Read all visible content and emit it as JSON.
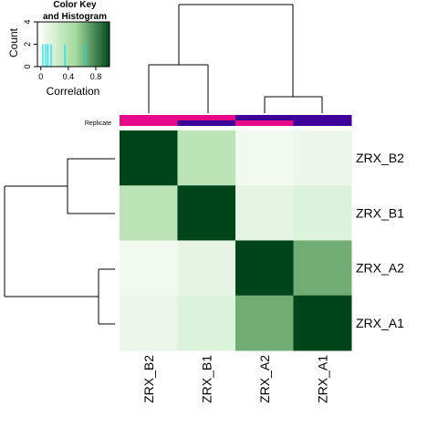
{
  "chart_data": {
    "type": "heatmap",
    "rows": [
      "ZRX_B2",
      "ZRX_B1",
      "ZRX_A2",
      "ZRX_A1"
    ],
    "columns": [
      "ZRX_B2",
      "ZRX_B1",
      "ZRX_A2",
      "ZRX_A1"
    ],
    "values": [
      [
        1.0,
        0.35,
        0.03,
        0.07
      ],
      [
        0.35,
        1.0,
        0.1,
        0.15
      ],
      [
        0.03,
        0.1,
        1.0,
        0.65
      ],
      [
        0.07,
        0.15,
        0.65,
        1.0
      ]
    ],
    "color_low": "#f7fcf5",
    "color_mid": "#a1d99b",
    "color_high": "#00441b",
    "side_colors": {
      "label": "Replicate",
      "top_row": [
        "#e7098a",
        "#e7098a",
        "#3b0399",
        "#3b0399"
      ],
      "bottom_row": [
        "#e7098a",
        "#3b0399",
        "#e7098a",
        "#3b0399"
      ]
    },
    "color_key": {
      "title_line1": "Color Key",
      "title_line2": "and Histogram",
      "xlabel": "Correlation",
      "ylabel": "Count",
      "x_ticks": [
        "0",
        "0.4",
        "0.8"
      ],
      "x_tick_values": [
        0,
        0.4,
        0.8
      ],
      "y_ticks": [
        "0",
        "2",
        "4"
      ],
      "y_tick_values": [
        0,
        2,
        4
      ],
      "xlim": [
        -0.05,
        1.0
      ],
      "ylim": [
        0,
        4
      ],
      "histogram_lines": [
        0.03,
        0.07,
        0.1,
        0.15,
        0.35,
        0.65
      ],
      "histogram_count": 2,
      "histogram_color": "#00e5ee"
    }
  }
}
